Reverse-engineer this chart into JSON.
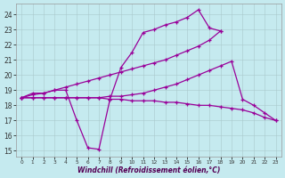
{
  "xlabel": "Windchill (Refroidissement éolien,°C)",
  "xlim": [
    -0.5,
    23.5
  ],
  "ylim": [
    14.6,
    24.7
  ],
  "xticks": [
    0,
    1,
    2,
    3,
    4,
    5,
    6,
    7,
    8,
    9,
    10,
    11,
    12,
    13,
    14,
    15,
    16,
    17,
    18,
    19,
    20,
    21,
    22,
    23
  ],
  "yticks": [
    15,
    16,
    17,
    18,
    19,
    20,
    21,
    22,
    23,
    24
  ],
  "bg_color": "#c5eaef",
  "line_color": "#990099",
  "grid_color": "#aac8cc",
  "lines": [
    {
      "x": [
        0,
        1,
        2,
        3,
        4,
        5,
        6,
        7,
        8,
        9,
        10,
        11,
        12,
        13,
        14,
        15,
        16,
        17,
        18
      ],
      "y": [
        18.5,
        18.8,
        18.8,
        19.0,
        19.0,
        17.0,
        15.2,
        15.1,
        18.4,
        20.5,
        21.5,
        22.8,
        23.0,
        23.3,
        23.5,
        23.8,
        24.3,
        23.1,
        22.9
      ]
    },
    {
      "x": [
        0,
        1,
        2,
        3,
        4,
        5,
        6,
        7,
        8,
        9,
        10,
        11,
        12,
        13,
        14,
        15,
        16,
        17,
        18
      ],
      "y": [
        18.5,
        18.7,
        18.8,
        19.0,
        19.2,
        19.4,
        19.6,
        19.8,
        20.0,
        20.2,
        20.4,
        20.6,
        20.8,
        21.0,
        21.3,
        21.6,
        21.9,
        22.3,
        22.9
      ]
    },
    {
      "x": [
        0,
        1,
        2,
        3,
        4,
        5,
        6,
        7,
        8,
        9,
        10,
        11,
        12,
        13,
        14,
        15,
        16,
        17,
        18,
        19,
        20,
        21,
        22,
        23
      ],
      "y": [
        18.5,
        18.5,
        18.5,
        18.5,
        18.5,
        18.5,
        18.5,
        18.5,
        18.4,
        18.4,
        18.3,
        18.3,
        18.3,
        18.2,
        18.2,
        18.1,
        18.0,
        18.0,
        17.9,
        17.8,
        17.7,
        17.5,
        17.2,
        17.0
      ]
    },
    {
      "x": [
        0,
        1,
        2,
        3,
        4,
        5,
        6,
        7,
        8,
        9,
        10,
        11,
        12,
        13,
        14,
        15,
        16,
        17,
        18,
        19,
        20,
        21,
        22,
        23
      ],
      "y": [
        18.5,
        18.5,
        18.5,
        18.5,
        18.5,
        18.5,
        18.5,
        18.5,
        18.6,
        18.6,
        18.7,
        18.8,
        19.0,
        19.2,
        19.4,
        19.7,
        20.0,
        20.3,
        20.6,
        20.9,
        18.4,
        18.0,
        17.5,
        17.0
      ]
    }
  ]
}
